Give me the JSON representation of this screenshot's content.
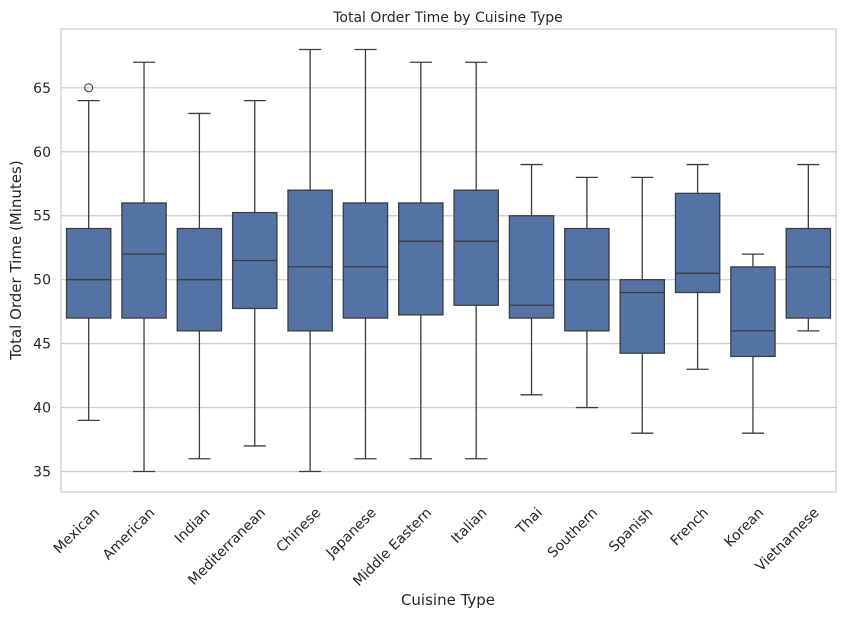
{
  "chart_data": {
    "type": "box",
    "title": "Total Order Time by Cuisine Type",
    "xlabel": "Cuisine Type",
    "ylabel": "Total Order Time (Minutes)",
    "ylim": [
      33.4,
      69.6
    ],
    "yticks": [
      35,
      40,
      45,
      50,
      55,
      60,
      65
    ],
    "grid": "horizontal",
    "box_color": "#5572a4",
    "line_color": "#3d3d3d",
    "categories": [
      "Mexican",
      "American",
      "Indian",
      "Mediterranean",
      "Chinese",
      "Japanese",
      "Middle Eastern",
      "Italian",
      "Thai",
      "Southern",
      "Spanish",
      "French",
      "Korean",
      "Vietnamese"
    ],
    "boxes": [
      {
        "whislo": 39,
        "q1": 47,
        "med": 50,
        "q3": 54,
        "whishi": 64,
        "fliers": [
          65
        ]
      },
      {
        "whislo": 35,
        "q1": 47,
        "med": 52,
        "q3": 56,
        "whishi": 67,
        "fliers": []
      },
      {
        "whislo": 36,
        "q1": 46,
        "med": 50,
        "q3": 54,
        "whishi": 63,
        "fliers": []
      },
      {
        "whislo": 37,
        "q1": 47.75,
        "med": 51.5,
        "q3": 55.25,
        "whishi": 64,
        "fliers": []
      },
      {
        "whislo": 35,
        "q1": 46,
        "med": 51,
        "q3": 57,
        "whishi": 68,
        "fliers": []
      },
      {
        "whislo": 36,
        "q1": 47,
        "med": 51,
        "q3": 56,
        "whishi": 68,
        "fliers": []
      },
      {
        "whislo": 36,
        "q1": 47.25,
        "med": 53,
        "q3": 56,
        "whishi": 67,
        "fliers": []
      },
      {
        "whislo": 36,
        "q1": 48,
        "med": 53,
        "q3": 57,
        "whishi": 67,
        "fliers": []
      },
      {
        "whislo": 41,
        "q1": 47,
        "med": 48,
        "q3": 55,
        "whishi": 59,
        "fliers": []
      },
      {
        "whislo": 40,
        "q1": 46,
        "med": 50,
        "q3": 54,
        "whishi": 58,
        "fliers": []
      },
      {
        "whislo": 38,
        "q1": 44.25,
        "med": 49,
        "q3": 50,
        "whishi": 58,
        "fliers": []
      },
      {
        "whislo": 43,
        "q1": 49,
        "med": 50.5,
        "q3": 56.75,
        "whishi": 59,
        "fliers": []
      },
      {
        "whislo": 38,
        "q1": 44,
        "med": 46,
        "q3": 51,
        "whishi": 52,
        "fliers": []
      },
      {
        "whislo": 46,
        "q1": 47,
        "med": 51,
        "q3": 54,
        "whishi": 59,
        "fliers": []
      }
    ]
  }
}
